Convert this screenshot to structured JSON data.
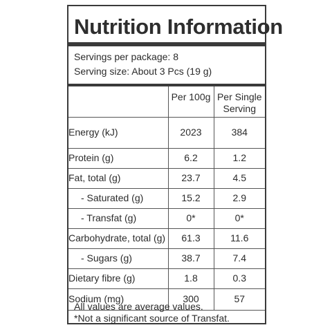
{
  "panel": {
    "title": "Nutrition Information",
    "servings_per_package": "Servings per package: 8",
    "serving_size": "Serving size: About 3 Pcs (19 g)"
  },
  "table": {
    "headers": {
      "per_100g": "Per 100g",
      "per_serving_line1": "Per Single",
      "per_serving_line2": "Serving"
    },
    "rows": [
      {
        "label": "Energy (kJ)",
        "per_100g": "2023",
        "per_serving": "384",
        "indent": false
      },
      {
        "label": "Protein (g)",
        "per_100g": "6.2",
        "per_serving": "1.2",
        "indent": false
      },
      {
        "label": "Fat, total (g)",
        "per_100g": "23.7",
        "per_serving": "4.5",
        "indent": false
      },
      {
        "label": "- Saturated (g)",
        "per_100g": "15.2",
        "per_serving": "2.9",
        "indent": true
      },
      {
        "label": "- Transfat (g)",
        "per_100g": "0*",
        "per_serving": "0*",
        "indent": true
      },
      {
        "label": "Carbohydrate, total (g)",
        "per_100g": "61.3",
        "per_serving": "11.6",
        "indent": false
      },
      {
        "label": "- Sugars (g)",
        "per_100g": "38.7",
        "per_serving": "7.4",
        "indent": true
      },
      {
        "label": "Dietary fibre (g)",
        "per_100g": "1.8",
        "per_serving": "0.3",
        "indent": false
      },
      {
        "label": "Sodium (mg)",
        "per_100g": "300",
        "per_serving": "57",
        "indent": false
      }
    ]
  },
  "footnotes": {
    "average": "All values are average values.",
    "transfat": "*Not a significant source of Transfat."
  }
}
